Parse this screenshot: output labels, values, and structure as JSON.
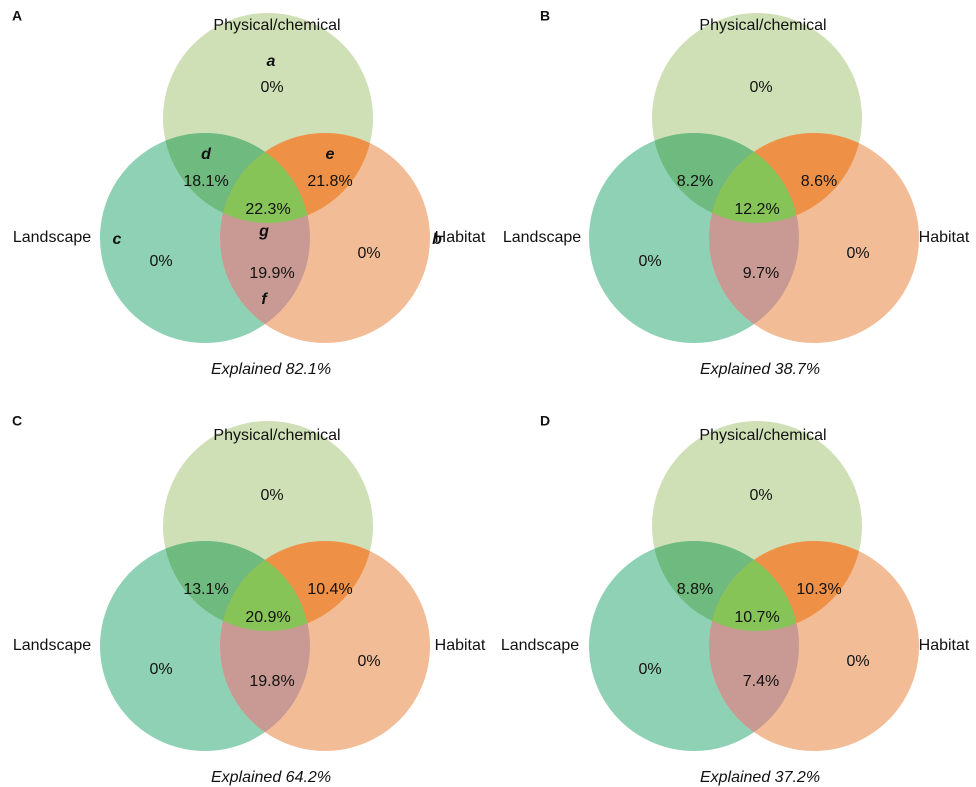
{
  "colors": {
    "physical": "#cfe0b6",
    "landscape": "#8fd1b4",
    "habitat": "#f2bc97",
    "phys_land": "#6fba7e",
    "phys_hab": "#ee9147",
    "land_hab": "#c89a93",
    "all_three": "#86c457"
  },
  "panels": [
    {
      "letter": "A",
      "labels": {
        "physical": "Physical/chemical",
        "landscape": "Landscape",
        "habitat": "Habitat"
      },
      "values": {
        "physical_only": "0%",
        "landscape_only": "0%",
        "habitat_only": "0%",
        "phys_land": "18.1%",
        "phys_hab": "21.8%",
        "land_hab": "19.9%",
        "all": "22.3%"
      },
      "region_letters": {
        "a": "a",
        "b": "b",
        "c": "c",
        "d": "d",
        "e": "e",
        "f": "f",
        "g": "g"
      },
      "explained": "Explained 82.1%"
    },
    {
      "letter": "B",
      "labels": {
        "physical": "Physical/chemical",
        "landscape": "Landscape",
        "habitat": "Habitat"
      },
      "values": {
        "physical_only": "0%",
        "landscape_only": "0%",
        "habitat_only": "0%",
        "phys_land": "8.2%",
        "phys_hab": "8.6%",
        "land_hab": "9.7%",
        "all": "12.2%"
      },
      "explained": "Explained 38.7%"
    },
    {
      "letter": "C",
      "labels": {
        "physical": "Physical/chemical",
        "landscape": "Landscape",
        "habitat": "Habitat"
      },
      "values": {
        "physical_only": "0%",
        "landscape_only": "0%",
        "habitat_only": "0%",
        "phys_land": "13.1%",
        "phys_hab": "10.4%",
        "land_hab": "19.8%",
        "all": "20.9%"
      },
      "explained": "Explained 64.2%"
    },
    {
      "letter": "D",
      "labels": {
        "physical": "Physical/chemical",
        "landscape": "Landscape",
        "habitat": "Habitat"
      },
      "values": {
        "physical_only": "0%",
        "landscape_only": "0%",
        "habitat_only": "0%",
        "phys_land": "8.8%",
        "phys_hab": "10.3%",
        "land_hab": "7.4%",
        "all": "10.7%"
      },
      "explained": "Explained 37.2%"
    }
  ]
}
